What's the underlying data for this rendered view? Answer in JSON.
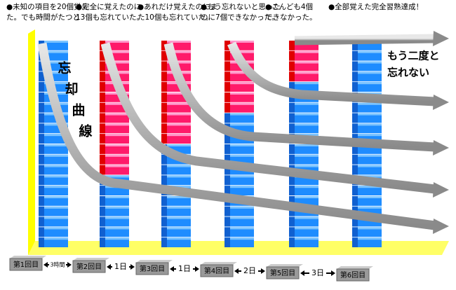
{
  "columns": [
    {
      "caption": [
        "●未知の項目を20個覚え",
        "た。でも時間がたつと"
      ],
      "items": 20,
      "forgotten": 0
    },
    {
      "caption": [
        "●完全に覚えたのに",
        "13個も忘れていた。"
      ],
      "items": 20,
      "forgotten": 13
    },
    {
      "caption": [
        "●あれだけ覚えたのにま",
        "た10個も忘れていた。"
      ],
      "items": 20,
      "forgotten": 10
    },
    {
      "caption": [
        "●もう忘れないと思った",
        "のに7個できなかった。"
      ],
      "items": 20,
      "forgotten": 7
    },
    {
      "caption": [
        "●こんども4個",
        "できなかった。"
      ],
      "items": 20,
      "forgotten": 4
    },
    {
      "caption": [
        "●全部覚えた完全習熟達成！"
      ],
      "items": 20,
      "forgotten": 0
    }
  ],
  "curve_label": [
    "忘",
    "却",
    "曲",
    "線"
  ],
  "never_forget": [
    "もう二度と",
    "忘れない"
  ],
  "sessions": [
    "第1回目",
    "第2回目",
    "第3回目",
    "第4回目",
    "第5回目",
    "第6回目"
  ],
  "intervals": [
    "3時間",
    "1日",
    "1日",
    "2日",
    "3日"
  ]
}
